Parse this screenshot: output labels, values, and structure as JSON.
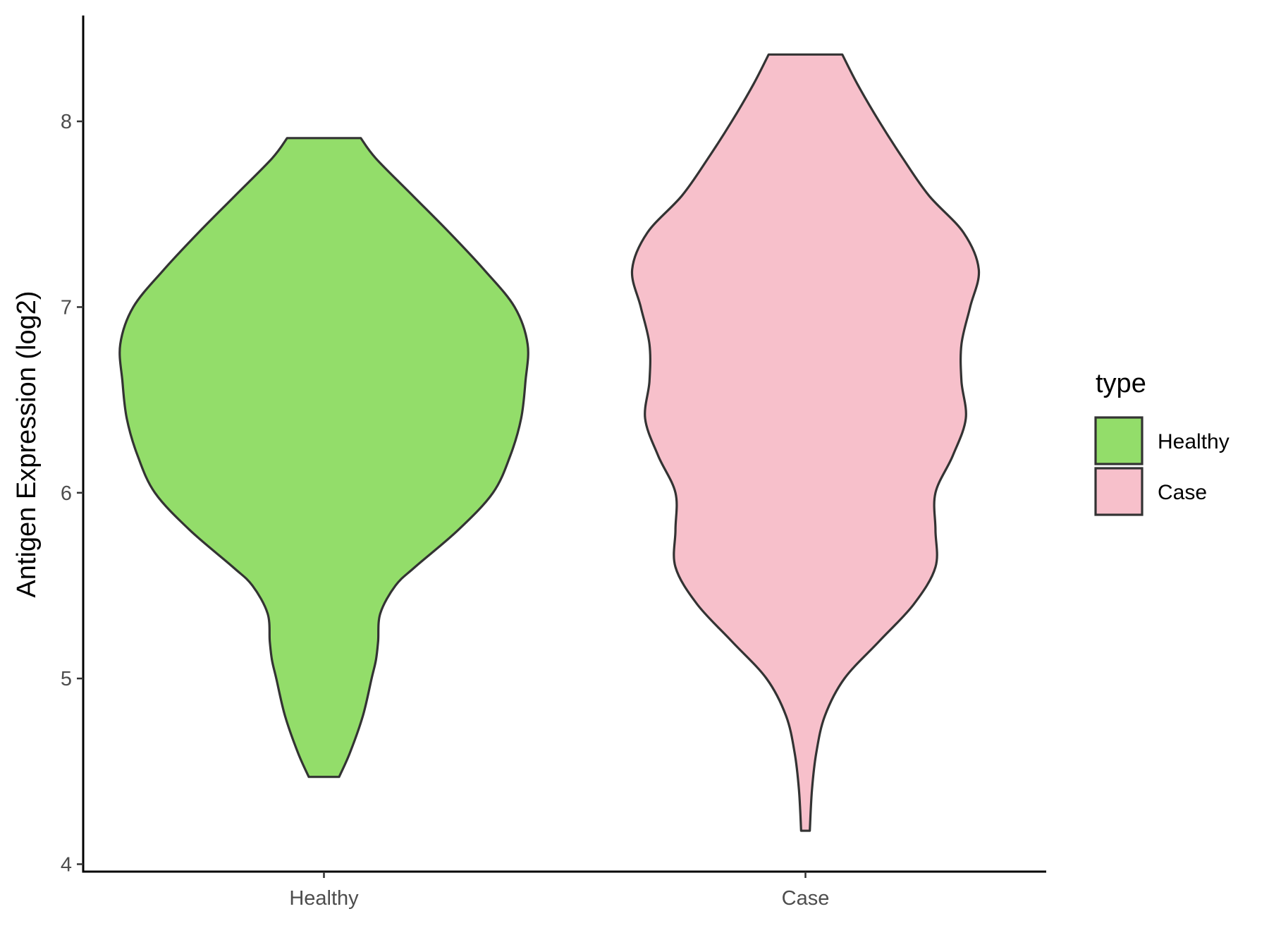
{
  "chart_data": {
    "type": "violin",
    "ylabel": "Antigen Expression (log2)",
    "xlabel": "",
    "categories": [
      "Healthy",
      "Case"
    ],
    "ylim": [
      3.96,
      8.57
    ],
    "yticks": [
      4,
      5,
      6,
      7,
      8
    ],
    "grid": false,
    "legend": {
      "title": "type",
      "position": "right",
      "entries": [
        {
          "label": "Healthy",
          "color": "#93DD6A"
        },
        {
          "label": "Case",
          "color": "#F7C0CB"
        }
      ]
    },
    "series": [
      {
        "category": "Healthy",
        "color": "#93DD6A",
        "range": [
          4.47,
          7.91
        ],
        "density_profile": [
          [
            4.47,
            0.07
          ],
          [
            4.6,
            0.12
          ],
          [
            4.8,
            0.18
          ],
          [
            5.0,
            0.22
          ],
          [
            5.1,
            0.24
          ],
          [
            5.2,
            0.25
          ],
          [
            5.35,
            0.26
          ],
          [
            5.5,
            0.33
          ],
          [
            5.6,
            0.42
          ],
          [
            5.8,
            0.62
          ],
          [
            6.0,
            0.78
          ],
          [
            6.2,
            0.86
          ],
          [
            6.4,
            0.91
          ],
          [
            6.6,
            0.93
          ],
          [
            6.8,
            0.94
          ],
          [
            7.0,
            0.88
          ],
          [
            7.2,
            0.74
          ],
          [
            7.4,
            0.58
          ],
          [
            7.6,
            0.41
          ],
          [
            7.8,
            0.24
          ],
          [
            7.91,
            0.17
          ]
        ]
      },
      {
        "category": "Case",
        "color": "#F7C0CB",
        "range": [
          4.18,
          8.36
        ],
        "density_profile": [
          [
            4.18,
            0.02
          ],
          [
            4.4,
            0.03
          ],
          [
            4.6,
            0.05
          ],
          [
            4.8,
            0.09
          ],
          [
            5.0,
            0.18
          ],
          [
            5.2,
            0.34
          ],
          [
            5.4,
            0.5
          ],
          [
            5.6,
            0.6
          ],
          [
            5.8,
            0.6
          ],
          [
            6.0,
            0.6
          ],
          [
            6.2,
            0.68
          ],
          [
            6.4,
            0.74
          ],
          [
            6.6,
            0.72
          ],
          [
            6.8,
            0.72
          ],
          [
            7.0,
            0.76
          ],
          [
            7.2,
            0.8
          ],
          [
            7.4,
            0.73
          ],
          [
            7.6,
            0.57
          ],
          [
            7.8,
            0.45
          ],
          [
            8.0,
            0.34
          ],
          [
            8.2,
            0.24
          ],
          [
            8.36,
            0.17
          ]
        ]
      }
    ]
  }
}
